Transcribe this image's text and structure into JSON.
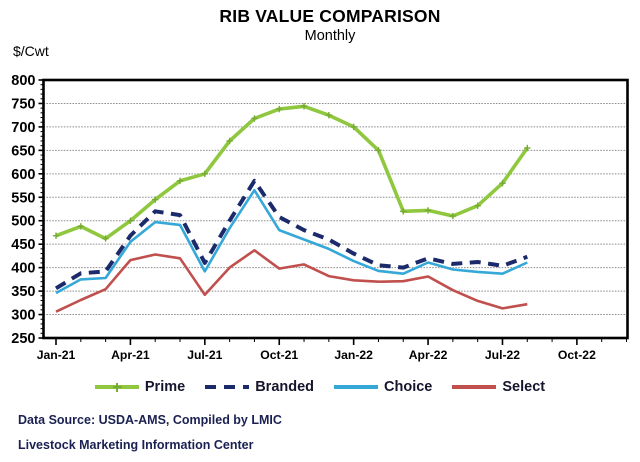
{
  "header": {
    "title": "RIB VALUE COMPARISON",
    "subtitle": "Monthly",
    "y_axis_unit": "$/Cwt"
  },
  "footer": {
    "source_line": "Data Source:  USDA-AMS, Compiled by LMIC",
    "org_line": "Livestock Marketing Information Center"
  },
  "chart_data": {
    "type": "line",
    "title": "RIB VALUE COMPARISON",
    "subtitle": "Monthly",
    "ylabel": "$/Cwt",
    "ylim": [
      250,
      800
    ],
    "y_tick_step": 50,
    "y_minor_tick_step": 10,
    "grid": true,
    "legend_position": "bottom",
    "x": [
      "Jan-21",
      "Feb-21",
      "Mar-21",
      "Apr-21",
      "May-21",
      "Jun-21",
      "Jul-21",
      "Aug-21",
      "Sep-21",
      "Oct-21",
      "Nov-21",
      "Dec-21",
      "Jan-22",
      "Feb-22",
      "Mar-22",
      "Apr-22",
      "May-22",
      "Jun-22",
      "Jul-22",
      "Aug-22"
    ],
    "x_domain": [
      "Jan-21",
      "Dec-22"
    ],
    "x_domain_months": 24,
    "x_tick_labels": [
      "Jan-21",
      "Apr-21",
      "Jul-21",
      "Oct-21",
      "Jan-22",
      "Apr-22",
      "Jul-22",
      "Oct-22"
    ],
    "x_tick_label_interval_months": 3,
    "series": [
      {
        "name": "Prime",
        "color": "#8FC73E",
        "style": "solid",
        "marker": "plus",
        "values": [
          468,
          488,
          462,
          500,
          545,
          585,
          600,
          670,
          718,
          738,
          744,
          725,
          700,
          650,
          520,
          522,
          510,
          532,
          580,
          655
        ]
      },
      {
        "name": "Branded",
        "color": "#1B2A6B",
        "style": "dashed",
        "marker": "none",
        "values": [
          356,
          388,
          392,
          468,
          520,
          512,
          410,
          500,
          585,
          508,
          480,
          460,
          430,
          405,
          400,
          420,
          408,
          412,
          404,
          423
        ]
      },
      {
        "name": "Choice",
        "color": "#35A8D8",
        "style": "solid",
        "marker": "none",
        "values": [
          346,
          375,
          378,
          455,
          497,
          491,
          392,
          484,
          565,
          480,
          460,
          440,
          414,
          393,
          387,
          411,
          396,
          391,
          387,
          411
        ]
      },
      {
        "name": "Select",
        "color": "#C0504D",
        "style": "solid",
        "marker": "none",
        "values": [
          306,
          331,
          354,
          416,
          428,
          420,
          342,
          400,
          437,
          398,
          407,
          382,
          373,
          370,
          371,
          381,
          352,
          329,
          313,
          322
        ]
      }
    ]
  }
}
